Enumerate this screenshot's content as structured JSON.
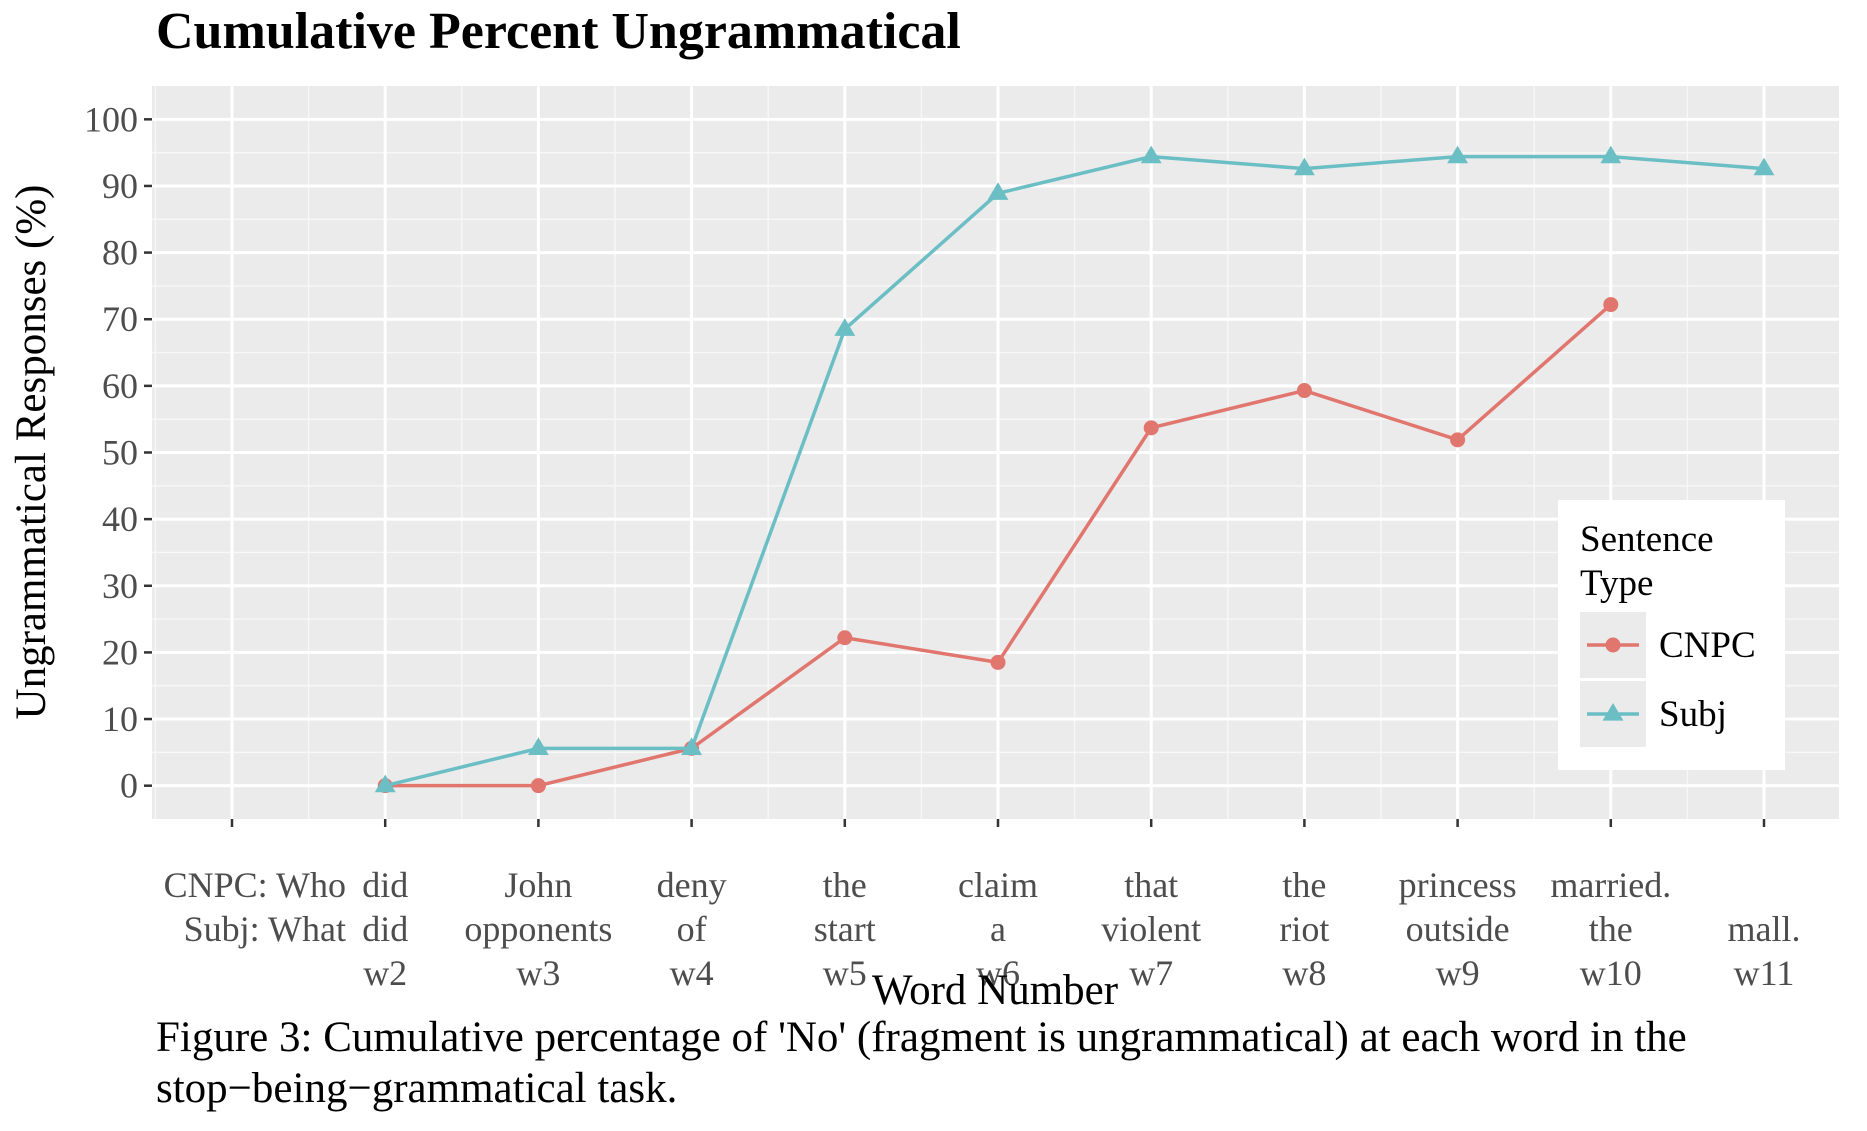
{
  "figure_title": "Cumulative Percent Ungrammatical",
  "caption": {
    "line1": "Figure 3: Cumulative percentage of 'No' (fragment is ungrammatical) at each word in the",
    "line2": "stop−being−grammatical task."
  },
  "chart_data": {
    "type": "line",
    "title": "Cumulative Percent Ungrammatical",
    "xlabel": "Word Number",
    "ylabel": "Ungrammatical Responses (%)",
    "ylim": [
      -5,
      105
    ],
    "yticks": [
      0,
      10,
      20,
      30,
      40,
      50,
      60,
      70,
      80,
      90,
      100
    ],
    "grid": true,
    "categories": [
      [
        "CNPC: Who",
        "Subj: What",
        ""
      ],
      [
        "did",
        "did",
        "w2"
      ],
      [
        "John",
        "opponents",
        "w3"
      ],
      [
        "deny",
        "of",
        "w4"
      ],
      [
        "the",
        "start",
        "w5"
      ],
      [
        "claim",
        "a",
        "w6"
      ],
      [
        "that",
        "violent",
        "w7"
      ],
      [
        "the",
        "riot",
        "w8"
      ],
      [
        "princess",
        "outside",
        "w9"
      ],
      [
        "married.",
        "the",
        "w10"
      ],
      [
        "",
        "mall.",
        "w11"
      ]
    ],
    "legend": {
      "title_line1": "Sentence",
      "title_line2": "Type",
      "position": "right"
    },
    "series": [
      {
        "name": "CNPC",
        "color": "#e0766e",
        "marker": "circle",
        "values": [
          null,
          0,
          0,
          5.6,
          22.2,
          18.5,
          53.7,
          59.3,
          51.9,
          72.2,
          null
        ]
      },
      {
        "name": "Subj",
        "color": "#6bbfc4",
        "marker": "triangle",
        "values": [
          null,
          0,
          5.6,
          5.6,
          68.5,
          88.9,
          94.4,
          92.6,
          94.4,
          94.4,
          92.6
        ]
      }
    ]
  }
}
